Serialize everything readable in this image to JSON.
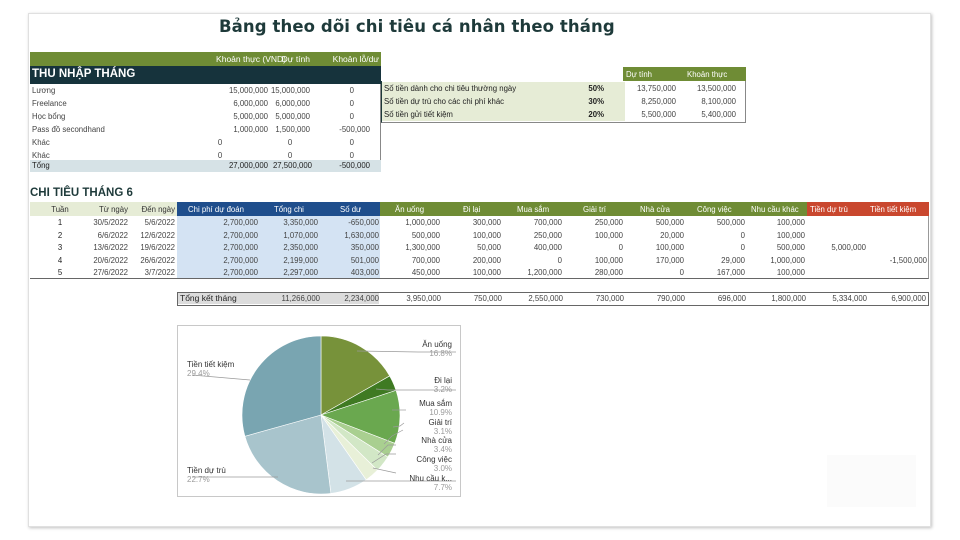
{
  "title": "Bảng theo dõi chi tiêu cá nhân theo tháng",
  "income": {
    "section_title": "THU NHẬP THÁNG",
    "headers": [
      "Khoản thực (VND)",
      "Dự tính",
      "Khoản lỗ/dư"
    ],
    "rows": [
      {
        "label": "Lương",
        "actual": "15,000,000",
        "planned": "15,000,000",
        "diff": "0"
      },
      {
        "label": "Freelance",
        "actual": "6,000,000",
        "planned": "6,000,000",
        "diff": "0"
      },
      {
        "label": "Học bổng",
        "actual": "5,000,000",
        "planned": "5,000,000",
        "diff": "0"
      },
      {
        "label": "Pass đồ secondhand",
        "actual": "1,000,000",
        "planned": "1,500,000",
        "diff": "-500,000"
      },
      {
        "label": "Khác",
        "actual": "0",
        "planned": "0",
        "diff": "0"
      },
      {
        "label": "Khác",
        "actual": "0",
        "planned": "0",
        "diff": "0"
      }
    ],
    "total": {
      "label": "Tổng",
      "actual": "27,000,000",
      "planned": "27,500,000",
      "diff": "-500,000"
    }
  },
  "allocation": {
    "headers": [
      "Dự tính",
      "Khoản thực"
    ],
    "rows": [
      {
        "label": "Số tiền dành cho chi tiêu thường ngày",
        "pct": "50%",
        "planned": "13,750,000",
        "actual": "13,500,000"
      },
      {
        "label": "Số tiền dự trù cho các chi phí khác",
        "pct": "30%",
        "planned": "8,250,000",
        "actual": "8,100,000"
      },
      {
        "label": "Số tiền gửi tiết kiệm",
        "pct": "20%",
        "planned": "5,500,000",
        "actual": "5,400,000"
      }
    ]
  },
  "expenses": {
    "section_title": "CHI TIÊU THÁNG 6",
    "headers": [
      "Tuần",
      "Từ ngày",
      "Đến ngày",
      "Chi phí dự đoán",
      "Tổng chi",
      "Số dư",
      "Ăn uống",
      "Đi lại",
      "Mua sắm",
      "Giải trí",
      "Nhà cửa",
      "Công việc",
      "Nhu cầu khác",
      "Tiền dự trù",
      "Tiền tiết kiệm"
    ],
    "rows": [
      [
        "1",
        "30/5/2022",
        "5/6/2022",
        "2,700,000",
        "3,350,000",
        "-650,000",
        "1,000,000",
        "300,000",
        "700,000",
        "250,000",
        "500,000",
        "500,000",
        "100,000",
        "",
        ""
      ],
      [
        "2",
        "6/6/2022",
        "12/6/2022",
        "2,700,000",
        "1,070,000",
        "1,630,000",
        "500,000",
        "100,000",
        "250,000",
        "100,000",
        "20,000",
        "0",
        "100,000",
        "",
        ""
      ],
      [
        "3",
        "13/6/2022",
        "19/6/2022",
        "2,700,000",
        "2,350,000",
        "350,000",
        "1,300,000",
        "50,000",
        "400,000",
        "0",
        "100,000",
        "0",
        "500,000",
        "5,000,000",
        ""
      ],
      [
        "4",
        "20/6/2022",
        "26/6/2022",
        "2,700,000",
        "2,199,000",
        "501,000",
        "700,000",
        "200,000",
        "0",
        "100,000",
        "170,000",
        "29,000",
        "1,000,000",
        "",
        "-1,500,000"
      ],
      [
        "5",
        "27/6/2022",
        "3/7/2022",
        "2,700,000",
        "2,297,000",
        "403,000",
        "450,000",
        "100,000",
        "1,200,000",
        "280,000",
        "0",
        "167,000",
        "100,000",
        "",
        ""
      ]
    ],
    "summary": {
      "label": "Tổng kết tháng",
      "values": [
        "11,266,000",
        "2,234,000",
        "3,950,000",
        "750,000",
        "2,550,000",
        "730,000",
        "790,000",
        "696,000",
        "1,800,000",
        "5,334,000",
        "6,900,000"
      ]
    }
  },
  "chart_data": {
    "type": "pie",
    "title": "",
    "categories": [
      "Ăn uống",
      "Đi lại",
      "Mua sắm",
      "Giải trí",
      "Nhà cửa",
      "Công việc",
      "Nhu cầu k...",
      "Tiền dự trù",
      "Tiền tiết kiệm"
    ],
    "values": [
      16.8,
      3.2,
      10.9,
      3.1,
      3.4,
      3.0,
      7.7,
      22.7,
      29.4
    ],
    "labels": [
      "16.8%",
      "3.2%",
      "10.9%",
      "3.1%",
      "3.4%",
      "3.0%",
      "7.7%",
      "22.7%",
      "29.4%"
    ],
    "colors": [
      "#77923a",
      "#3f7a22",
      "#6aa84f",
      "#a9cf90",
      "#d2e7c6",
      "#e8f0d8",
      "#d3e2e7",
      "#a8c4cc",
      "#79a5b1"
    ],
    "legend": "none (outside labels with leader lines)"
  }
}
